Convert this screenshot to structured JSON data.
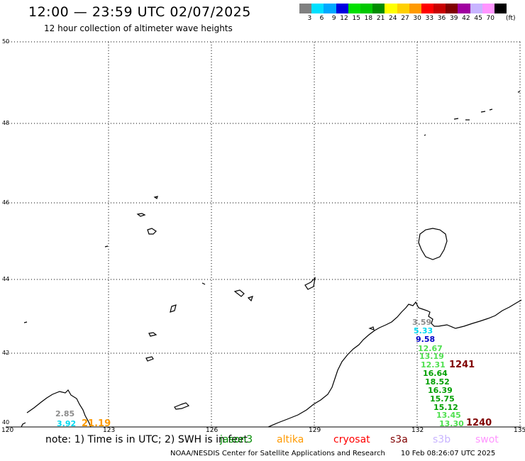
{
  "header": {
    "title": "12:00 — 23:59 UTC 02/07/2025",
    "subtitle": "12 hour collection of altimeter wave heights"
  },
  "color_scale": {
    "unit": "(ft)",
    "steps": [
      {
        "label": "3",
        "color": "#808080"
      },
      {
        "label": "6",
        "color": "#00e0ff"
      },
      {
        "label": "9",
        "color": "#00a8ff"
      },
      {
        "label": "12",
        "color": "#0000e0"
      },
      {
        "label": "15",
        "color": "#00e000"
      },
      {
        "label": "18",
        "color": "#00c800"
      },
      {
        "label": "21",
        "color": "#008c00"
      },
      {
        "label": "24",
        "color": "#ffff00"
      },
      {
        "label": "27",
        "color": "#ffd000"
      },
      {
        "label": "30",
        "color": "#ff9a00"
      },
      {
        "label": "33",
        "color": "#ff0000"
      },
      {
        "label": "36",
        "color": "#c80000"
      },
      {
        "label": "39",
        "color": "#800000"
      },
      {
        "label": "42",
        "color": "#a000a0"
      },
      {
        "label": "45",
        "color": "#c8b4ff"
      },
      {
        "label": "70",
        "color": "#ff96ff"
      },
      {
        "label": "",
        "color": "#000000"
      }
    ]
  },
  "axes": {
    "lat_labels": [
      "50",
      "48",
      "46",
      "44",
      "42",
      "40"
    ],
    "lon_labels": [
      "120",
      "123",
      "126",
      "129",
      "132",
      "135"
    ]
  },
  "observations": [
    {
      "text": "2.85",
      "color": "#8c8c8c"
    },
    {
      "text": "3.92",
      "color": "#00d8f0"
    },
    {
      "text": "21.19",
      "color": "#ff9a00"
    },
    {
      "text": "3.59",
      "color": "#8c8c8c"
    },
    {
      "text": "5.33",
      "color": "#00d8f0"
    },
    {
      "text": "9.58",
      "color": "#0000c8"
    },
    {
      "text": "12.67",
      "color": "#50e050"
    },
    {
      "text": "13.19",
      "color": "#50e050"
    },
    {
      "text": "12.31",
      "color": "#50e050"
    },
    {
      "text": "16.64",
      "color": "#00a000"
    },
    {
      "text": "18.52",
      "color": "#00a000"
    },
    {
      "text": "16.39",
      "color": "#00a000"
    },
    {
      "text": "15.75",
      "color": "#00a000"
    },
    {
      "text": "15.12",
      "color": "#00a000"
    },
    {
      "text": "13.45",
      "color": "#50e050"
    },
    {
      "text": "13.30",
      "color": "#50e050"
    },
    {
      "text": "1241",
      "color": "#800000"
    },
    {
      "text": "1240",
      "color": "#800000"
    }
  ],
  "footer": {
    "note": "note:  1) Time is in UTC;  2) SWH is in feet",
    "satellites": [
      {
        "name": "jason3",
        "color": "#008c00"
      },
      {
        "name": "altika",
        "color": "#ff9a00"
      },
      {
        "name": "cryosat",
        "color": "#ff0000"
      },
      {
        "name": "s3a",
        "color": "#800000"
      },
      {
        "name": "s3b",
        "color": "#c8b4ff"
      },
      {
        "name": "swot",
        "color": "#ff96ff"
      }
    ],
    "credit": "NOAA/NESDIS Center for Satellite Applications and Research",
    "timestamp": "10 Feb 08:26:07 UTC 2025"
  }
}
